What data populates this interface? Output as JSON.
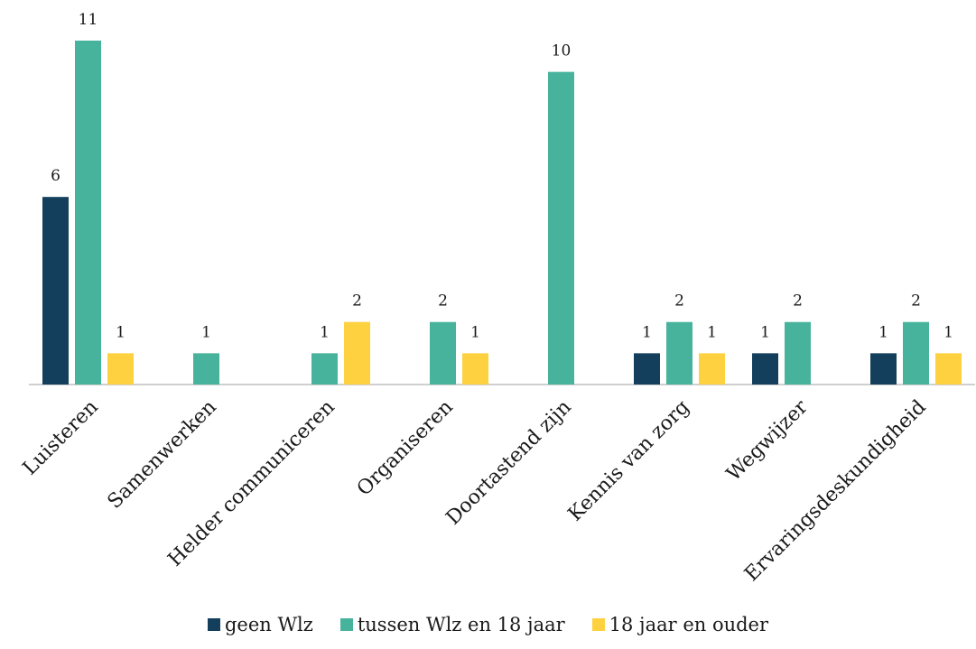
{
  "chart_data": {
    "type": "bar",
    "categories": [
      "Luisteren",
      "Samenwerken",
      "Helder communiceren",
      "Organiseren",
      "Doortastend  zijn",
      "Kennis van zorg",
      "Wegwijzer",
      "Ervaringsdeskundigheid"
    ],
    "series": [
      {
        "name": "geen Wlz",
        "color": "#143f5c",
        "values": [
          6,
          null,
          null,
          null,
          null,
          1,
          1,
          1
        ]
      },
      {
        "name": "tussen Wlz en 18 jaar",
        "color": "#48b39c",
        "values": [
          11,
          1,
          1,
          2,
          10,
          2,
          2,
          2
        ]
      },
      {
        "name": "18 jaar en ouder",
        "color": "#fdd13f",
        "values": [
          1,
          null,
          2,
          1,
          null,
          1,
          null,
          1
        ]
      }
    ],
    "ylim": [
      0,
      12
    ],
    "grid": false,
    "legend": "bottom",
    "axis_color": "#bfbfbf"
  }
}
